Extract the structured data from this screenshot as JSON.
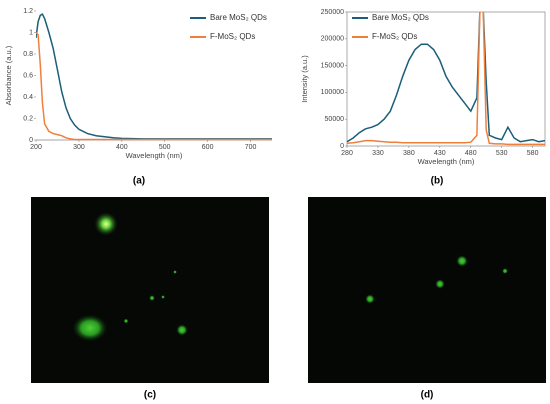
{
  "chart_data": [
    {
      "type": "line",
      "panel_label": "(a)",
      "x_label": "Wavelength (nm)",
      "y_label": "Absorbance (a.u.)",
      "x": [
        200,
        205,
        210,
        215,
        220,
        230,
        240,
        250,
        260,
        270,
        280,
        290,
        300,
        320,
        340,
        360,
        380,
        400,
        450,
        500,
        550,
        600,
        650,
        700,
        750
      ],
      "series": [
        {
          "name": "Bare MoS₂ QDs",
          "color": "#1b5e7a",
          "values": [
            0.95,
            1.1,
            1.16,
            1.17,
            1.13,
            1.0,
            0.85,
            0.65,
            0.45,
            0.3,
            0.2,
            0.14,
            0.1,
            0.06,
            0.04,
            0.03,
            0.02,
            0.015,
            0.01,
            0.01,
            0.01,
            0.01,
            0.01,
            0.01,
            0.01
          ]
        },
        {
          "name": "F-MoS₂ QDs",
          "color": "#f07f3c",
          "values": [
            1.0,
            0.98,
            0.7,
            0.35,
            0.15,
            0.08,
            0.06,
            0.05,
            0.04,
            0.02,
            0.01,
            0.005,
            0.005,
            0.005,
            0.005,
            0.005,
            0.005,
            0.005,
            0.005,
            0.005,
            0.005,
            0.005,
            0.005,
            0.005,
            0.005
          ]
        }
      ],
      "xlim": [
        200,
        750
      ],
      "xticks": [
        200,
        300,
        400,
        500,
        600,
        700
      ],
      "ylim": [
        0,
        1.2
      ],
      "yticks": [
        0,
        0.2,
        0.4,
        0.6,
        0.8,
        1,
        1.2
      ],
      "legend": "upper right",
      "frame": false
    },
    {
      "type": "line",
      "panel_label": "(b)",
      "x_label": "Wavelength (nm)",
      "y_label": "Intensity (a.u.)",
      "x": [
        280,
        290,
        300,
        310,
        320,
        330,
        340,
        350,
        360,
        370,
        380,
        390,
        400,
        410,
        420,
        430,
        440,
        450,
        460,
        470,
        480,
        490,
        495,
        500,
        505,
        510,
        520,
        530,
        540,
        550,
        560,
        570,
        580,
        590,
        600
      ],
      "series": [
        {
          "name": "Bare MoS₂ QDs",
          "color": "#1b5e7a",
          "values": [
            8000,
            15000,
            25000,
            32000,
            35000,
            40000,
            50000,
            65000,
            95000,
            130000,
            160000,
            180000,
            190000,
            190000,
            180000,
            160000,
            130000,
            110000,
            95000,
            80000,
            65000,
            90000,
            260000,
            260000,
            120000,
            20000,
            15000,
            12000,
            35000,
            15000,
            8000,
            10000,
            12000,
            8000,
            10000
          ]
        },
        {
          "name": "F-MoS₂ QDs",
          "color": "#f07f3c",
          "values": [
            5000,
            6000,
            8000,
            10000,
            10000,
            9000,
            8000,
            7000,
            7000,
            6000,
            6000,
            6000,
            6000,
            6000,
            6000,
            6000,
            6000,
            6000,
            6000,
            6000,
            7000,
            20000,
            260000,
            260000,
            30000,
            5000,
            4000,
            4000,
            3000,
            3000,
            3000,
            3000,
            3000,
            3000,
            3000
          ]
        }
      ],
      "xlim": [
        280,
        600
      ],
      "xticks": [
        280,
        330,
        380,
        430,
        480,
        530,
        580
      ],
      "ylim": [
        0,
        250000
      ],
      "yticks": [
        0,
        50000,
        100000,
        150000,
        200000,
        250000
      ],
      "legend": "upper right",
      "frame": true
    }
  ],
  "images": [
    {
      "panel_label": "(c)"
    },
    {
      "panel_label": "(d)"
    }
  ]
}
